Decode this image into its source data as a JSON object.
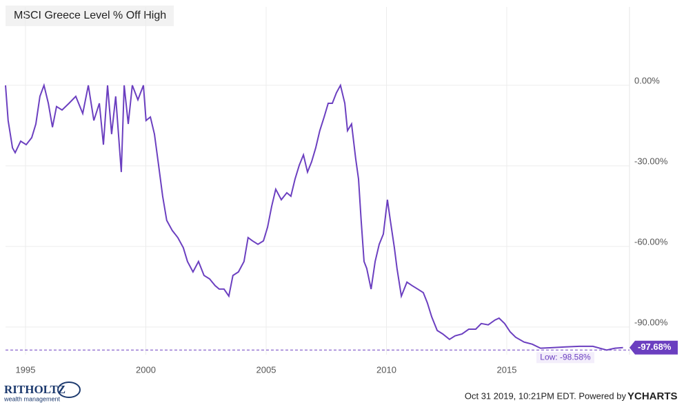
{
  "chart_data": {
    "type": "line",
    "title": "MSCI Greece Level % Off High",
    "x": [
      1994.17,
      1994.28,
      1994.46,
      1994.57,
      1994.8,
      1995.03,
      1995.26,
      1995.43,
      1995.6,
      1995.77,
      1995.95,
      1996.12,
      1996.29,
      1996.52,
      1996.81,
      1997.09,
      1997.38,
      1997.61,
      1997.84,
      1998.07,
      1998.24,
      1998.41,
      1998.58,
      1998.75,
      1998.98,
      1999.1,
      1999.27,
      1999.44,
      1999.67,
      1999.9,
      2000.01,
      2000.19,
      2000.36,
      2000.53,
      2000.7,
      2000.87,
      2001.1,
      2001.33,
      2001.56,
      2001.73,
      2001.96,
      2002.19,
      2002.42,
      2002.65,
      2002.88,
      2003.05,
      2003.25,
      2003.45,
      2003.62,
      2003.85,
      2004.08,
      2004.25,
      2004.43,
      2004.66,
      2004.89,
      2005.06,
      2005.23,
      2005.4,
      2005.63,
      2005.86,
      2006.03,
      2006.2,
      2006.38,
      2006.55,
      2006.72,
      2006.89,
      2007.06,
      2007.23,
      2007.41,
      2007.58,
      2007.75,
      2007.92,
      2008.09,
      2008.27,
      2008.38,
      2008.55,
      2008.72,
      2008.84,
      2008.95,
      2009.07,
      2009.18,
      2009.36,
      2009.53,
      2009.7,
      2009.87,
      2010.04,
      2010.16,
      2010.33,
      2010.44,
      2010.62,
      2010.85,
      2011.07,
      2011.3,
      2011.53,
      2011.7,
      2011.88,
      2012.11,
      2012.34,
      2012.62,
      2012.85,
      2013.14,
      2013.42,
      2013.71,
      2013.94,
      2014.23,
      2014.51,
      2014.68,
      2014.91,
      2015.14,
      2015.37,
      2015.72,
      2016.06,
      2016.4,
      2016.86,
      2017.44,
      2018.01,
      2018.58,
      2019.15,
      2019.5,
      2019.83
    ],
    "series": [
      {
        "name": "MSCI Greece Level % Off High",
        "color": "#6b3fc0",
        "values": [
          0,
          -13.1,
          -23.3,
          -25.1,
          -20.8,
          -22.1,
          -19.5,
          -14.4,
          -4.1,
          0,
          -6.7,
          -15.6,
          -7.9,
          -9.2,
          -6.7,
          -4.1,
          -10.5,
          0,
          -13.1,
          -6.7,
          -22.1,
          0,
          -18.2,
          -4.1,
          -32.3,
          0,
          -14.4,
          0,
          -5.4,
          0,
          -13.1,
          -11.8,
          -18.2,
          -29.7,
          -41.3,
          -50.3,
          -54.1,
          -56.7,
          -60.5,
          -65.6,
          -69.5,
          -65.6,
          -70.8,
          -72.1,
          -74.6,
          -75.9,
          -75.9,
          -78.5,
          -70.8,
          -69.5,
          -65.6,
          -56.7,
          -57.9,
          -59.2,
          -57.9,
          -52.8,
          -45.1,
          -38.7,
          -42.6,
          -40.0,
          -41.3,
          -34.9,
          -29.7,
          -25.9,
          -32.3,
          -28.5,
          -23.3,
          -16.9,
          -11.8,
          -6.7,
          -6.7,
          -2.8,
          0,
          -6.7,
          -16.9,
          -14.4,
          -27.2,
          -34.9,
          -50.3,
          -65.6,
          -68.2,
          -75.9,
          -65.6,
          -59.2,
          -55.4,
          -42.6,
          -50.3,
          -60.5,
          -68.2,
          -78.5,
          -73.3,
          -74.6,
          -75.9,
          -77.2,
          -81.0,
          -86.2,
          -91.3,
          -92.6,
          -94.6,
          -93.3,
          -92.6,
          -90.8,
          -90.8,
          -88.7,
          -89.2,
          -87.4,
          -86.7,
          -88.7,
          -91.8,
          -93.8,
          -95.6,
          -96.4,
          -97.9,
          -97.7,
          -97.4,
          -97.2,
          -97.2,
          -98.58,
          -97.9,
          -97.68
        ]
      }
    ],
    "last_label": "-97.68%",
    "low_value": -98.58,
    "low_label": "Low: -98.58%",
    "xlim": [
      1994.17,
      2020.1
    ],
    "xticks": [
      1995,
      2000,
      2005,
      2010,
      2015
    ],
    "ylim": [
      -100.3,
      29.2
    ],
    "yticks": [
      {
        "value": 0,
        "label": "0.00%"
      },
      {
        "value": -30,
        "label": "-30.00%"
      },
      {
        "value": -60,
        "label": "-60.00%"
      },
      {
        "value": -90,
        "label": "-90.00%"
      }
    ],
    "grid": true,
    "footer": "Oct 31 2019, 10:21PM EDT. Powered by",
    "brand": "YCHARTS",
    "logo_name": "RITHOLTZ",
    "logo_sub": "wealth management"
  }
}
